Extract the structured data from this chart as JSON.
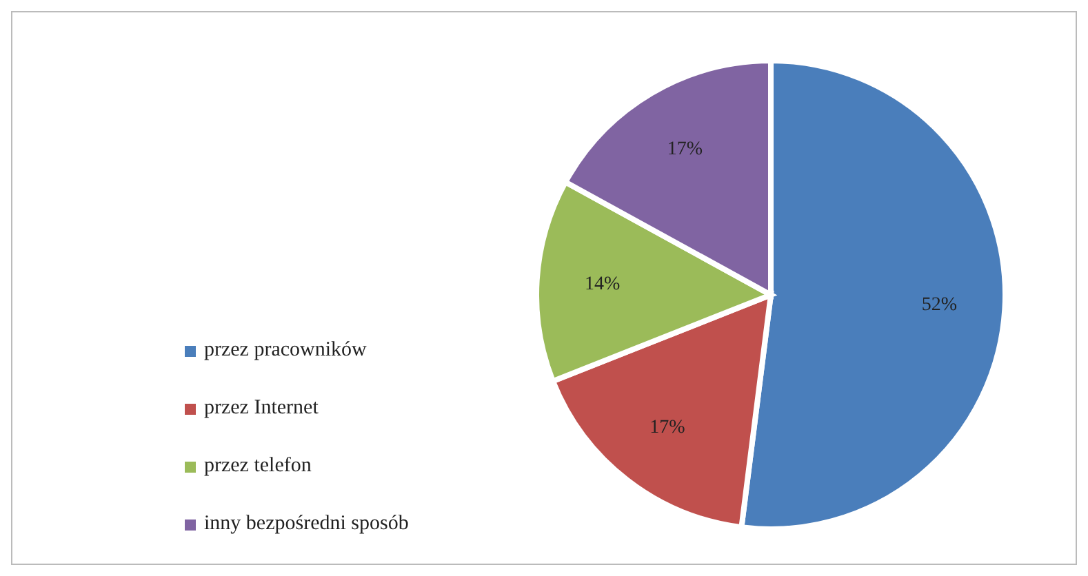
{
  "chart_data": {
    "type": "pie",
    "categories": [
      "przez pracowników",
      "przez Internet",
      "przez telefon",
      "inny bezpośredni sposób"
    ],
    "values": [
      52,
      17,
      14,
      17
    ],
    "colors": [
      "#4a7ebb",
      "#c0504d",
      "#9bbb59",
      "#8064a2"
    ],
    "value_labels": [
      "52%",
      "17%",
      "14%",
      "17%"
    ],
    "legend": "bottom left"
  }
}
